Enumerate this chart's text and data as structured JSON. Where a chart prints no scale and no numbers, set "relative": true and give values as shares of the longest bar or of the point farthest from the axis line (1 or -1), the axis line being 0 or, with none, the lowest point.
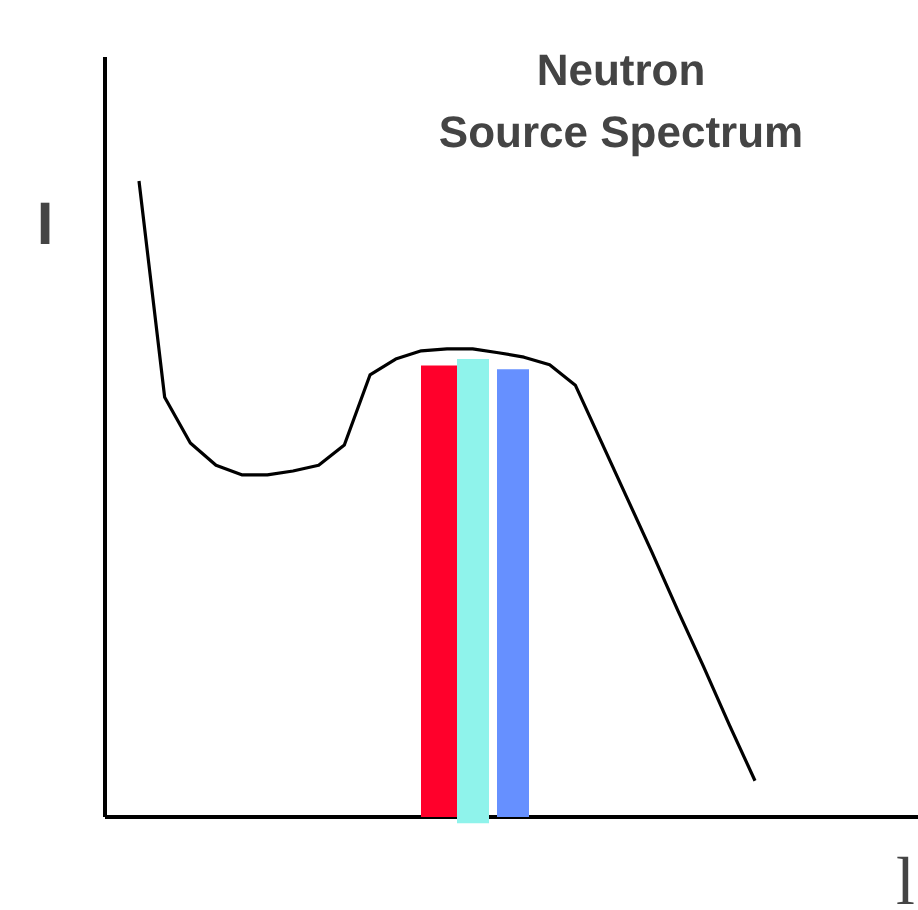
{
  "chart_data": {
    "type": "line",
    "title": "Neutron\nSource Spectrum",
    "ylabel": "I",
    "xlabel": "l",
    "relative": true,
    "categories": [
      null,
      null,
      null,
      null,
      null,
      null,
      null,
      null,
      null,
      null,
      null,
      null,
      null,
      null,
      null,
      null,
      null,
      null,
      null,
      null,
      null,
      null,
      null,
      null,
      null
    ],
    "series": [
      {
        "color": "#000000",
        "values": [
          1,
          0.66,
          0.588,
          0.553,
          0.538,
          0.538,
          0.544,
          0.553,
          0.585,
          0.695,
          0.72,
          0.733,
          0.736,
          0.736,
          0.73,
          0.723,
          0.711,
          0.679,
          0.591,
          0.503,
          0.415,
          0.324,
          0.236,
          0.145,
          0.057
        ]
      }
    ]
  }
}
